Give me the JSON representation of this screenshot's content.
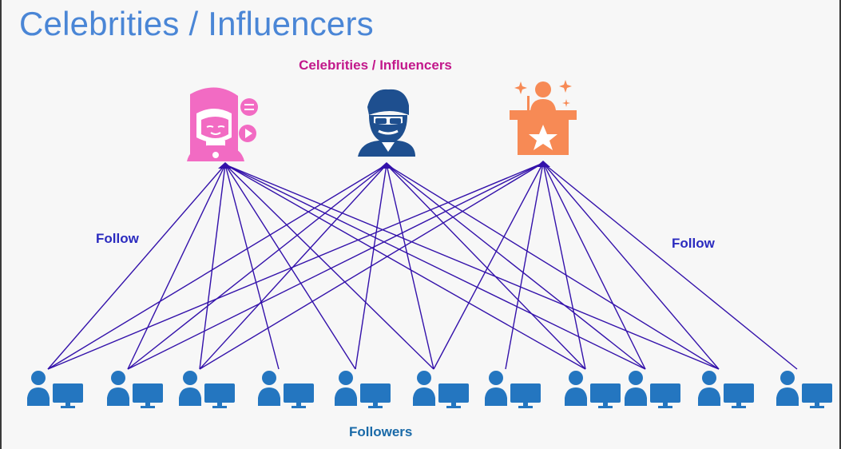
{
  "title": "Celebrities / Influencers",
  "diagram": {
    "celebrities_label": "Celebrities / Influencers",
    "follow_left_label": "Follow",
    "follow_right_label": "Follow",
    "followers_label": "Followers",
    "celebrities": [
      {
        "icon": "female-influencer-icon",
        "color": "#f26bc3"
      },
      {
        "icon": "bearded-man-sunglasses-icon",
        "color": "#1e4f8f"
      },
      {
        "icon": "speaker-podium-star-icon",
        "color": "#f78a55"
      }
    ],
    "followers": [
      {
        "icon": "user-computer-icon"
      },
      {
        "icon": "user-computer-icon"
      },
      {
        "icon": "user-computer-icon"
      },
      {
        "icon": "user-computer-icon"
      },
      {
        "icon": "user-computer-icon"
      },
      {
        "icon": "user-computer-icon"
      },
      {
        "icon": "user-computer-icon"
      },
      {
        "icon": "user-computer-icon"
      },
      {
        "icon": "user-computer-icon"
      },
      {
        "icon": "user-computer-icon"
      },
      {
        "icon": "user-computer-icon"
      }
    ],
    "follower_color": "#2476c0",
    "edge_color": "#3311aa",
    "edges": [
      [
        0,
        0
      ],
      [
        0,
        1
      ],
      [
        0,
        2
      ],
      [
        0,
        3
      ],
      [
        0,
        4
      ],
      [
        0,
        5
      ],
      [
        0,
        7
      ],
      [
        0,
        8
      ],
      [
        0,
        9
      ],
      [
        1,
        0
      ],
      [
        1,
        1
      ],
      [
        1,
        2
      ],
      [
        1,
        4
      ],
      [
        1,
        5
      ],
      [
        1,
        7
      ],
      [
        1,
        8
      ],
      [
        1,
        9
      ],
      [
        2,
        0
      ],
      [
        2,
        1
      ],
      [
        2,
        2
      ],
      [
        2,
        5
      ],
      [
        2,
        6
      ],
      [
        2,
        7
      ],
      [
        2,
        8
      ],
      [
        2,
        9
      ],
      [
        2,
        10
      ]
    ]
  }
}
